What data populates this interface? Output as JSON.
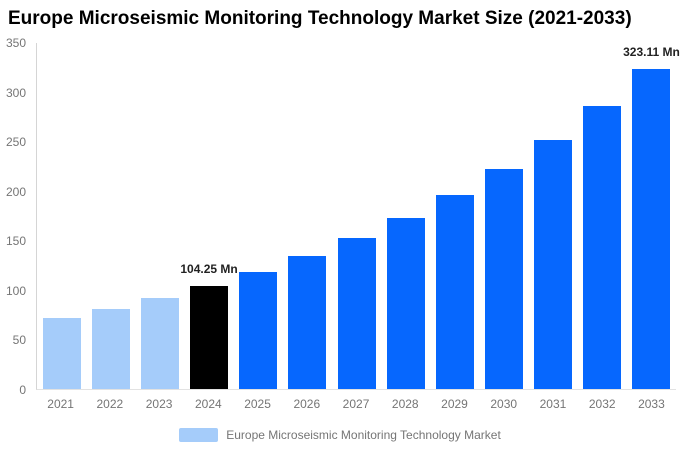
{
  "title": "Europe Microseismic Monitoring Technology Market Size (2021-2033)",
  "chart_data": {
    "type": "bar",
    "title": "Europe Microseismic Monitoring Technology Market Size (2021-2033)",
    "categories": [
      "2021",
      "2022",
      "2023",
      "2024",
      "2025",
      "2026",
      "2027",
      "2028",
      "2029",
      "2030",
      "2031",
      "2032",
      "2033"
    ],
    "values": [
      71.5,
      81.1,
      91.9,
      104.25,
      118.2,
      134.1,
      152.0,
      172.4,
      195.5,
      221.7,
      251.4,
      285.0,
      323.11
    ],
    "unit": "Mn",
    "series_name": "Europe Microseismic Monitoring Technology Market",
    "data_labels": [
      {
        "category": "2024",
        "text": "104.25 Mn"
      },
      {
        "category": "2033",
        "text": "323.11 Mn"
      }
    ],
    "bar_colors": [
      "#A5CCFA",
      "#A5CCFA",
      "#A5CCFA",
      "#000000",
      "#0667FE",
      "#0667FE",
      "#0667FE",
      "#0667FE",
      "#0667FE",
      "#0667FE",
      "#0667FE",
      "#0667FE",
      "#0667FE"
    ],
    "color_semantics": {
      "historical_2021_2023": "#A5CCFA",
      "base_year_2024": "#000000",
      "forecast_2025_2033": "#0667FE"
    },
    "xlabel": "",
    "ylabel": "",
    "ylim": [
      0,
      350
    ],
    "yticks": [
      0,
      50,
      100,
      150,
      200,
      250,
      300,
      350
    ],
    "grid": false,
    "legend_position": "bottom"
  },
  "legend": {
    "label": "Europe Microseismic Monitoring Technology Market",
    "swatch_color": "#A5CCFA"
  },
  "colors": {
    "tick_text": "#757575",
    "data_label_text": "#222222",
    "title_text": "#000000",
    "background": "#FFFFFF"
  }
}
